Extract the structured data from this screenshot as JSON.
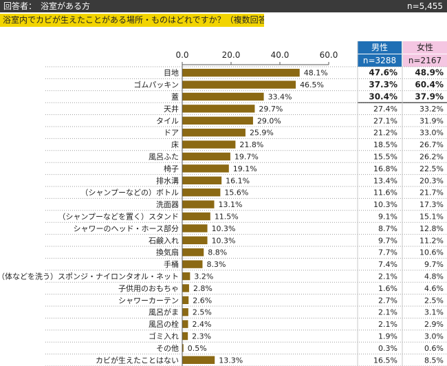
{
  "header": {
    "respondents": "回答者：　浴室がある方",
    "total_n": "n=5,455"
  },
  "question": "浴室内でカビが生えたことがある場所・ものはどれですか？（複数回答）",
  "columns": {
    "male": {
      "label": "男性",
      "n": "n=3288"
    },
    "female": {
      "label": "女性",
      "n": "n=2167"
    }
  },
  "colors": {
    "bar": "#8b6914",
    "male_head": "#1f6fb5",
    "female_head": "#f4c6e2",
    "header_bg": "#3a3a3a",
    "question_bg": "#f2d400"
  },
  "chart_data": {
    "type": "bar",
    "orientation": "horizontal",
    "xlim": [
      0,
      60
    ],
    "xticks": [
      "0.0",
      "20.0",
      "40.0",
      "60.0"
    ],
    "categories": [
      "目地",
      "ゴムパッキン",
      "蓋",
      "天井",
      "タイル",
      "ドア",
      "床",
      "風呂ふた",
      "椅子",
      "排水溝",
      "（シャンプーなどの）ボトル",
      "洗面器",
      "（シャンプーなどを置く）スタンド",
      "シャワーのヘッド・ホース部分",
      "石鹸入れ",
      "換気扇",
      "手桶",
      "（体などを洗う）スポンジ・ナイロンタオル・ネット",
      "子供用のおもちゃ",
      "シャワーカーテン",
      "風呂がま",
      "風呂の栓",
      "ゴミ入れ",
      "その他",
      "カビが生えたことはない"
    ],
    "values": [
      48.1,
      46.5,
      33.4,
      29.7,
      29.0,
      25.9,
      21.8,
      19.7,
      19.1,
      16.1,
      15.6,
      13.1,
      11.5,
      10.3,
      10.3,
      8.8,
      8.3,
      3.2,
      2.8,
      2.6,
      2.5,
      2.4,
      2.3,
      0.5,
      13.3
    ],
    "value_labels": [
      "48.1%",
      "46.5%",
      "33.4%",
      "29.7%",
      "29.0%",
      "25.9%",
      "21.8%",
      "19.7%",
      "19.1%",
      "16.1%",
      "15.6%",
      "13.1%",
      "11.5%",
      "10.3%",
      "10.3%",
      "8.8%",
      "8.3%",
      "3.2%",
      "2.8%",
      "2.6%",
      "2.5%",
      "2.4%",
      "2.3%",
      "0.5%",
      "13.3%"
    ],
    "male": [
      "47.6%",
      "37.3%",
      "30.4%",
      "27.4%",
      "27.1%",
      "21.2%",
      "18.5%",
      "15.5%",
      "16.8%",
      "13.4%",
      "11.6%",
      "10.3%",
      "9.1%",
      "8.7%",
      "9.7%",
      "7.7%",
      "7.4%",
      "2.1%",
      "1.6%",
      "2.7%",
      "2.1%",
      "2.1%",
      "1.9%",
      "0.3%",
      "16.5%"
    ],
    "female": [
      "48.9%",
      "60.4%",
      "37.9%",
      "33.2%",
      "31.9%",
      "33.0%",
      "26.7%",
      "26.2%",
      "22.5%",
      "20.3%",
      "21.7%",
      "17.3%",
      "15.1%",
      "12.8%",
      "11.2%",
      "10.6%",
      "9.7%",
      "4.8%",
      "4.6%",
      "2.5%",
      "3.1%",
      "2.9%",
      "3.0%",
      "0.6%",
      "8.5%"
    ],
    "highlight_rows": 3,
    "grid": false
  }
}
